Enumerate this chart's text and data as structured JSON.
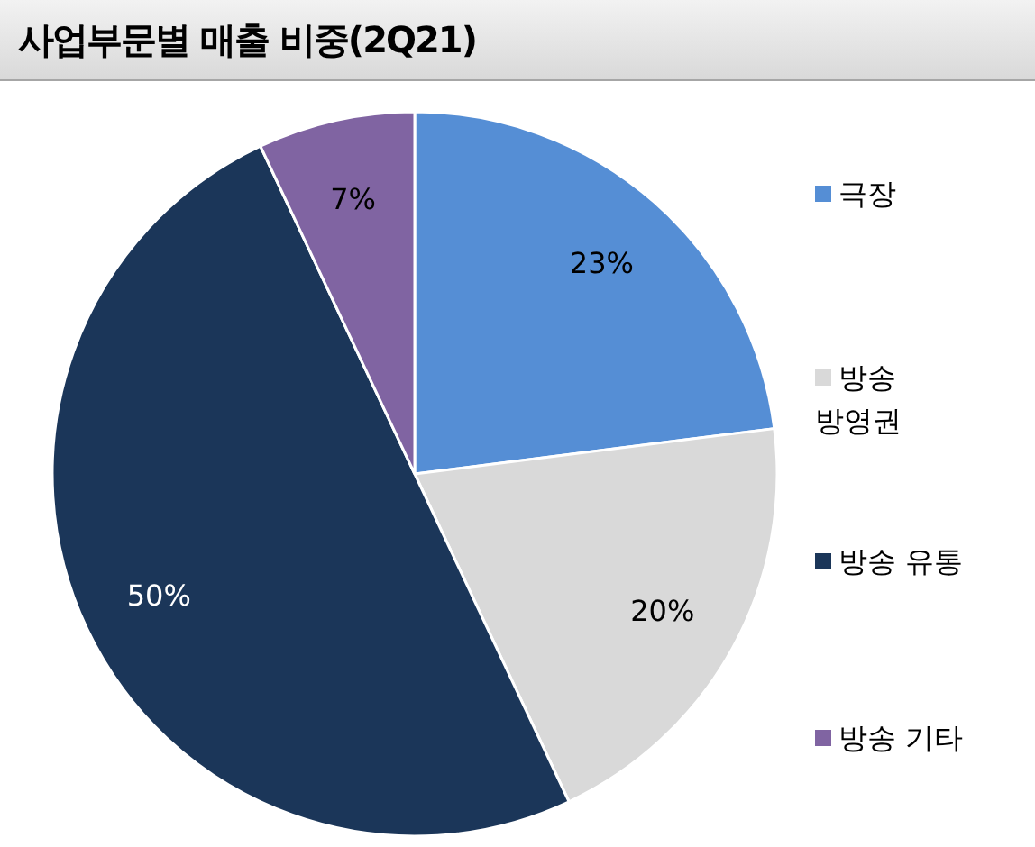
{
  "chart_data": {
    "type": "pie",
    "title": "사업부문별 매출 비중(2Q21)",
    "categories": [
      "극장",
      "방송 방영권",
      "방송 유통",
      "방송 기타"
    ],
    "values": [
      23,
      20,
      50,
      7
    ],
    "colors": [
      "#558ed5",
      "#d9d9d9",
      "#1b3659",
      "#8064a2"
    ],
    "value_labels": [
      "23%",
      "20%",
      "50%",
      "7%"
    ],
    "legend": "right"
  }
}
